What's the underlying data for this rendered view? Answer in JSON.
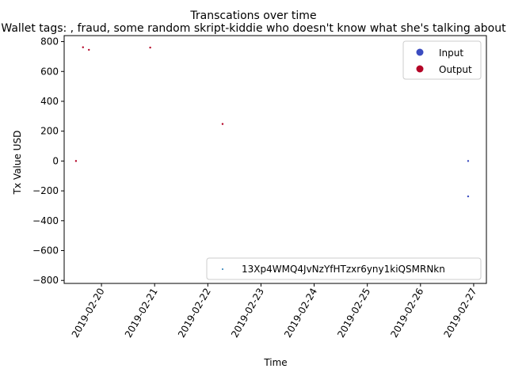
{
  "chart_data": {
    "type": "scatter",
    "title": "Transcations over time",
    "subtitle": "Wallet tags: , fraud, some random skript-kiddie who doesn't know what she's talking about",
    "xlabel": "Time",
    "ylabel": "Tx Value USD",
    "xlim": [
      "2019-02-19T07:10",
      "2019-02-27T05:45"
    ],
    "ylim": [
      -820,
      840
    ],
    "x_ticks": [
      "2019-02-20",
      "2019-02-21",
      "2019-02-22",
      "2019-02-23",
      "2019-02-24",
      "2019-02-25",
      "2019-02-26",
      "2019-02-27"
    ],
    "y_ticks": [
      -800,
      -600,
      -400,
      -200,
      0,
      200,
      400,
      600,
      800
    ],
    "grid": false,
    "series": [
      {
        "name": "Input",
        "color": "#3b4cc0",
        "points": [
          {
            "x": "2019-02-26T21:30",
            "y": 0
          },
          {
            "x": "2019-02-26T21:30",
            "y": -237
          }
        ]
      },
      {
        "name": "Output",
        "color": "#b40426",
        "points": [
          {
            "x": "2019-02-19T12:30",
            "y": 0
          },
          {
            "x": "2019-02-19T15:40",
            "y": 762
          },
          {
            "x": "2019-02-19T18:20",
            "y": 745
          },
          {
            "x": "2019-02-20T22:00",
            "y": 760
          },
          {
            "x": "2019-02-22T06:40",
            "y": 248
          }
        ]
      }
    ],
    "legend_upper": {
      "placement": "top-right",
      "entries": [
        "Input",
        "Output"
      ]
    },
    "legend_lower": {
      "placement": "bottom-right",
      "label": "13Xp4WMQ4JvNzYfHTzxr6yny1kiQSMRNkn",
      "color": "#1f77b4"
    }
  }
}
